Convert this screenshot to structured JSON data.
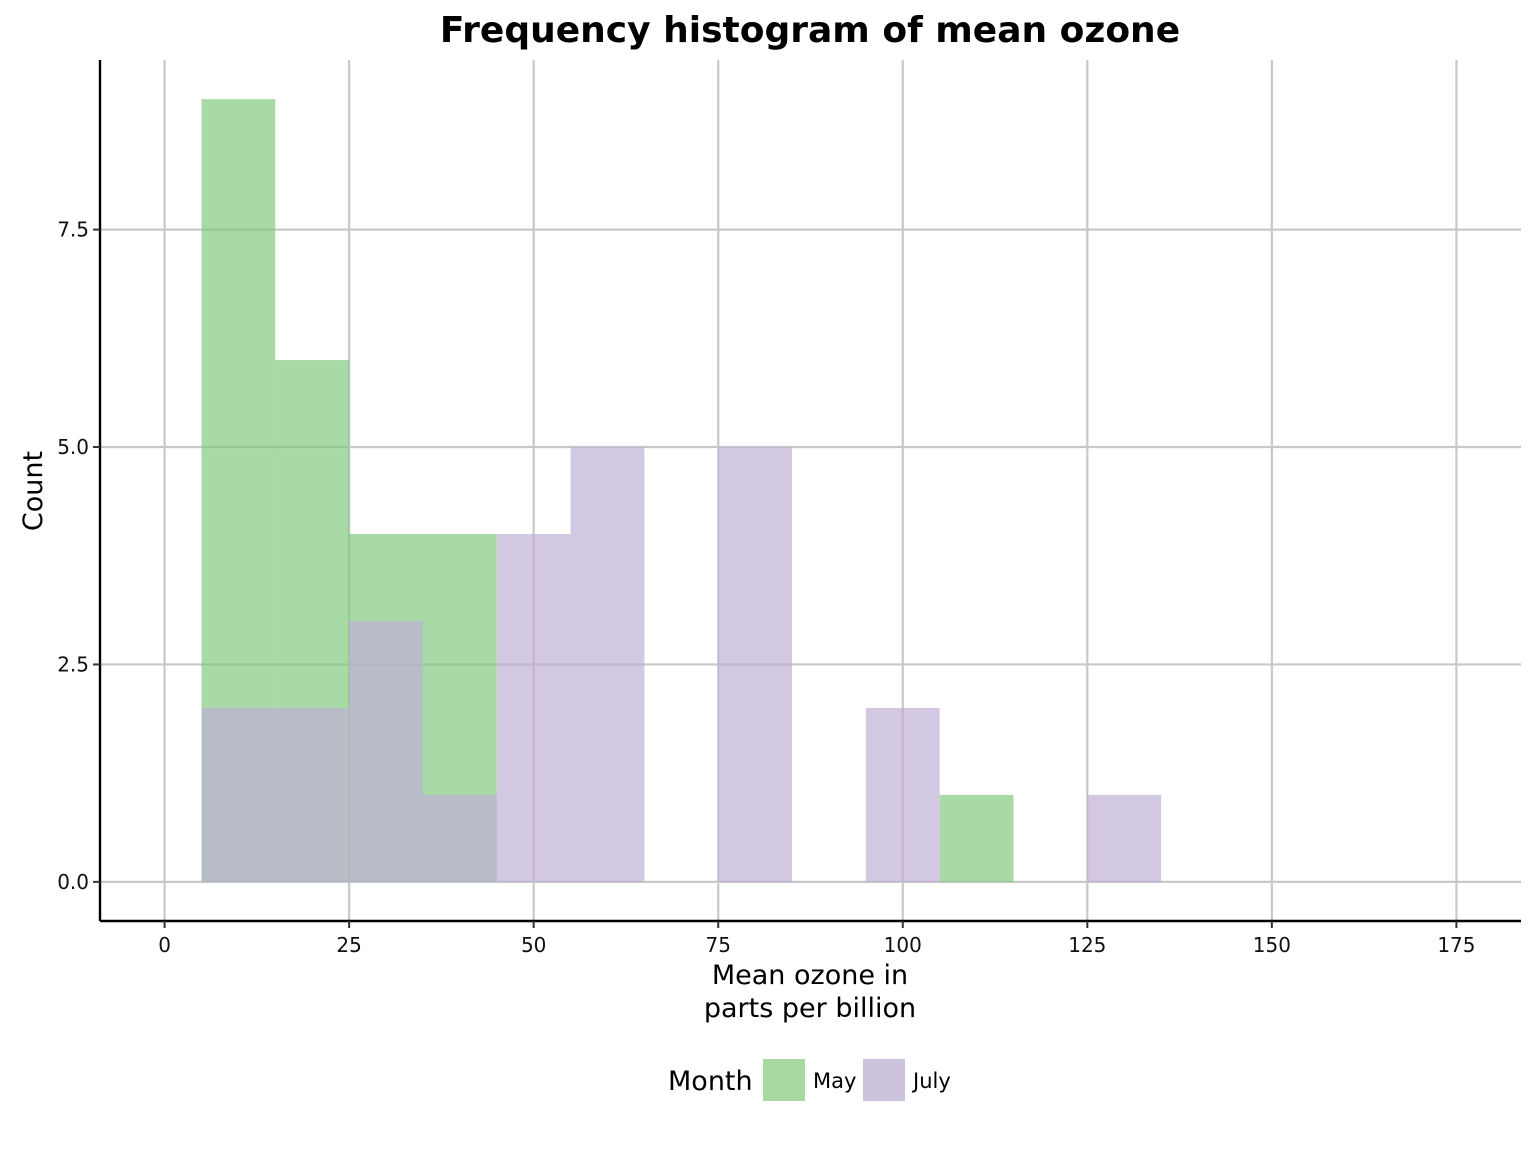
{
  "chart_data": {
    "type": "bar",
    "title": "Frequency histogram of mean ozone",
    "xlabel": [
      "Mean ozone in",
      "parts per billion"
    ],
    "ylabel": "Count",
    "xlim": [
      -8.75,
      183.75
    ],
    "ylim": [
      -0.45,
      9.45
    ],
    "x_ticks": [
      0,
      25,
      50,
      75,
      100,
      125,
      150,
      175
    ],
    "x_tick_labels": [
      "0",
      "25",
      "50",
      "75",
      "100",
      "125",
      "150",
      "175"
    ],
    "y_ticks": [
      0,
      2.5,
      5,
      7.5
    ],
    "y_tick_labels": [
      "0.0",
      "2.5",
      "5.0",
      "7.5"
    ],
    "grid": true,
    "bin_width": 10,
    "series": [
      {
        "name": "May",
        "color": "#7fc97f",
        "bins": [
          {
            "x0": 5,
            "x1": 15,
            "count": 9
          },
          {
            "x0": 15,
            "x1": 25,
            "count": 6
          },
          {
            "x0": 25,
            "x1": 35,
            "count": 4
          },
          {
            "x0": 35,
            "x1": 45,
            "count": 4
          },
          {
            "x0": 105,
            "x1": 115,
            "count": 1
          }
        ]
      },
      {
        "name": "July",
        "color": "#beaed4",
        "bins": [
          {
            "x0": 5,
            "x1": 15,
            "count": 2
          },
          {
            "x0": 15,
            "x1": 25,
            "count": 2
          },
          {
            "x0": 25,
            "x1": 35,
            "count": 3
          },
          {
            "x0": 35,
            "x1": 45,
            "count": 1
          },
          {
            "x0": 45,
            "x1": 55,
            "count": 4
          },
          {
            "x0": 55,
            "x1": 65,
            "count": 5
          },
          {
            "x0": 75,
            "x1": 85,
            "count": 5
          },
          {
            "x0": 95,
            "x1": 105,
            "count": 2
          },
          {
            "x0": 125,
            "x1": 135,
            "count": 1
          }
        ]
      }
    ],
    "legend": {
      "title": "Month",
      "position": "bottom",
      "entries": [
        {
          "label": "May",
          "color": "#7fc97f"
        },
        {
          "label": "July",
          "color": "#beaed4"
        }
      ]
    }
  }
}
